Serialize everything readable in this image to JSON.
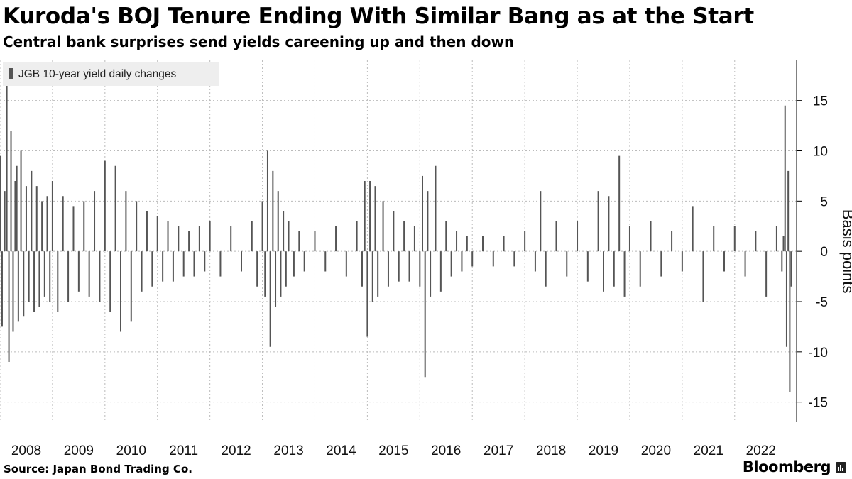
{
  "header": {
    "title": "Kuroda's BOJ Tenure Ending With Similar Bang as at the Start",
    "subtitle": "Central bank surprises send yields careening up and then down"
  },
  "footer": {
    "source": "Source: Japan Bond Trading Co.",
    "brand": "Bloomberg",
    "brand_icon": "bloomberg-terminal-icon"
  },
  "colors": {
    "bars": "#555555",
    "grid": "#bbbbbb",
    "legend_bg": "#eeeeee"
  },
  "chart_data": {
    "type": "bar",
    "legend": [
      {
        "name": "JGB 10-year yield daily changes",
        "color": "#555555"
      }
    ],
    "legend_position": "top-left",
    "ylabel": "Basis points",
    "ylim": [
      -17,
      19
    ],
    "yticks": [
      15,
      10,
      5,
      0,
      -5,
      -10,
      -15
    ],
    "xlim": [
      2008.0,
      2023.18
    ],
    "xticks": [
      2008,
      2009,
      2010,
      2011,
      2012,
      2013,
      2014,
      2015,
      2016,
      2017,
      2018,
      2019,
      2020,
      2021,
      2022
    ],
    "grid": {
      "x": true,
      "y": true,
      "style": "dotted"
    },
    "y_axis_position": "right",
    "x": [
      2008.0,
      2008.04,
      2008.09,
      2008.13,
      2008.17,
      2008.21,
      2008.25,
      2008.29,
      2008.32,
      2008.35,
      2008.4,
      2008.45,
      2008.5,
      2008.55,
      2008.6,
      2008.65,
      2008.7,
      2008.75,
      2008.8,
      2008.85,
      2008.9,
      2008.95,
      2009.0,
      2009.1,
      2009.2,
      2009.3,
      2009.4,
      2009.5,
      2009.6,
      2009.7,
      2009.8,
      2009.9,
      2010.0,
      2010.1,
      2010.2,
      2010.3,
      2010.4,
      2010.5,
      2010.6,
      2010.7,
      2010.8,
      2010.9,
      2011.0,
      2011.1,
      2011.2,
      2011.3,
      2011.4,
      2011.5,
      2011.6,
      2011.7,
      2011.8,
      2011.9,
      2012.0,
      2012.2,
      2012.4,
      2012.6,
      2012.8,
      2012.9,
      2013.0,
      2013.05,
      2013.1,
      2013.15,
      2013.2,
      2013.25,
      2013.3,
      2013.35,
      2013.4,
      2013.45,
      2013.5,
      2013.6,
      2013.7,
      2013.8,
      2014.0,
      2014.2,
      2014.4,
      2014.6,
      2014.8,
      2014.9,
      2014.95,
      2015.0,
      2015.05,
      2015.1,
      2015.15,
      2015.2,
      2015.3,
      2015.4,
      2015.5,
      2015.6,
      2015.7,
      2015.8,
      2015.9,
      2016.0,
      2016.05,
      2016.1,
      2016.15,
      2016.2,
      2016.3,
      2016.4,
      2016.5,
      2016.6,
      2016.7,
      2016.8,
      2016.9,
      2017.0,
      2017.2,
      2017.4,
      2017.6,
      2017.8,
      2018.0,
      2018.2,
      2018.3,
      2018.4,
      2018.6,
      2018.8,
      2019.0,
      2019.2,
      2019.4,
      2019.5,
      2019.6,
      2019.7,
      2019.8,
      2019.9,
      2020.0,
      2020.2,
      2020.4,
      2020.6,
      2020.8,
      2021.0,
      2021.2,
      2021.4,
      2021.6,
      2021.8,
      2022.0,
      2022.2,
      2022.4,
      2022.6,
      2022.8,
      2022.9,
      2022.93,
      2022.96,
      2022.99,
      2023.02,
      2023.05,
      2023.08
    ],
    "values": [
      9.5,
      -7.5,
      6.0,
      16.5,
      -11.0,
      12.0,
      -8.0,
      7.0,
      8.5,
      -7.0,
      10.0,
      -6.5,
      6.5,
      -5.0,
      8.0,
      -6.0,
      6.5,
      -5.5,
      5.0,
      -4.5,
      5.5,
      -5.0,
      7.0,
      -6.0,
      5.5,
      -5.0,
      4.5,
      -4.0,
      5.0,
      -4.5,
      6.0,
      -5.0,
      9.0,
      -6.0,
      8.5,
      -8.0,
      6.0,
      -7.0,
      5.0,
      -4.0,
      4.0,
      -3.5,
      3.5,
      -3.0,
      3.0,
      -3.0,
      2.5,
      -2.5,
      2.0,
      -2.5,
      2.5,
      -2.0,
      3.0,
      -2.5,
      2.5,
      -2.0,
      3.0,
      -3.5,
      5.0,
      -4.5,
      10.0,
      -9.5,
      8.0,
      -5.5,
      6.0,
      -4.5,
      4.0,
      -3.5,
      3.0,
      -2.5,
      2.0,
      -2.0,
      2.0,
      -2.0,
      2.5,
      -2.5,
      3.0,
      -3.5,
      7.0,
      -8.5,
      7.0,
      -5.0,
      6.5,
      -4.5,
      5.0,
      -3.5,
      4.0,
      -3.0,
      3.0,
      -3.0,
      2.5,
      -3.5,
      7.5,
      -12.5,
      6.0,
      -4.5,
      8.5,
      -4.0,
      3.0,
      -2.5,
      2.0,
      -2.0,
      1.5,
      -1.5,
      1.5,
      -1.5,
      1.5,
      -1.5,
      2.0,
      -2.0,
      6.0,
      -3.5,
      3.0,
      -2.5,
      3.0,
      -3.0,
      6.0,
      -4.0,
      5.5,
      -3.5,
      9.5,
      -4.5,
      2.5,
      -3.5,
      3.0,
      -2.5,
      2.0,
      -2.0,
      4.5,
      -5.0,
      2.5,
      -2.0,
      2.5,
      -2.5,
      2.0,
      -4.5,
      2.5,
      -2.0,
      1.5,
      14.5,
      -9.5,
      8.0,
      -14.0,
      -3.5
    ]
  }
}
